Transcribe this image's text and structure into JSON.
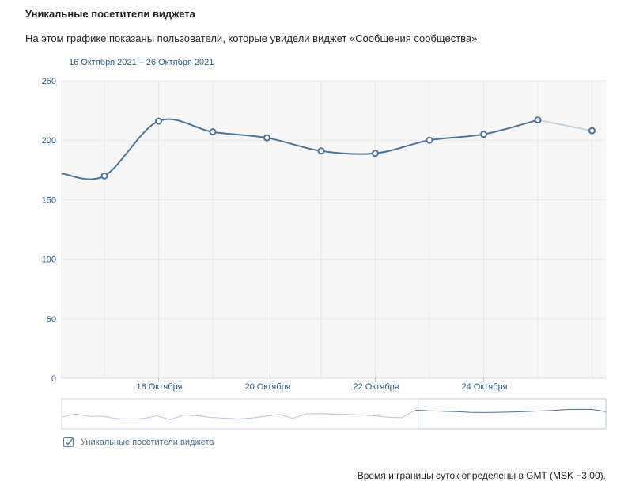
{
  "header": {
    "title": "Уникальные посетители виджета",
    "subtitle": "На этом графике показаны пользователи, которые увидели виджет «Сообщения сообщества»",
    "date_range": "16 Октября 2021 – 26 Октября 2021"
  },
  "legend": {
    "label": "Уникальные посетители виджета",
    "checked": true
  },
  "footnote": "Время и границы суток определены в GMT (MSK −3:00).",
  "colors": {
    "line": "#4e7398",
    "faded_line": "#c3d3e2",
    "grid": "#e7eaed",
    "plot_bg": "#f7f7f8",
    "axis_text": "#2a5885"
  },
  "chart_data": {
    "type": "line",
    "title": "Уникальные посетители виджета",
    "ylim": [
      0,
      250
    ],
    "yticks": [
      0,
      50,
      100,
      150,
      200,
      250
    ],
    "xticks": [
      {
        "label": "18 Октября",
        "x": 2
      },
      {
        "label": "20 Октября",
        "x": 4
      },
      {
        "label": "22 Октября",
        "x": 6
      },
      {
        "label": "24 Октября",
        "x": 8
      }
    ],
    "xlim": [
      0.21,
      10.2
    ],
    "series": [
      {
        "name": "Уникальные посетители виджета",
        "points": [
          {
            "x": 0.21,
            "y": 172,
            "marker": false
          },
          {
            "x": 1,
            "y": 170
          },
          {
            "x": 2,
            "y": 216
          },
          {
            "x": 3,
            "y": 207
          },
          {
            "x": 4,
            "y": 202
          },
          {
            "x": 5,
            "y": 191
          },
          {
            "x": 6,
            "y": 189
          },
          {
            "x": 7,
            "y": 200
          },
          {
            "x": 8,
            "y": 205
          },
          {
            "x": 9,
            "y": 217
          },
          {
            "x": 10,
            "y": 208
          }
        ],
        "faded_from_x": 9
      }
    ],
    "navigator": {
      "values": [
        190,
        205,
        193,
        194,
        183,
        181,
        183,
        196,
        178,
        200,
        196,
        188,
        185,
        181,
        186,
        194,
        202,
        184,
        205,
        206,
        204,
        202,
        200,
        196,
        189,
        187,
        222,
        219,
        217,
        215,
        212,
        211,
        212,
        213,
        215,
        218,
        220,
        224,
        226,
        225,
        215
      ],
      "selection_start": 0.655
    }
  }
}
